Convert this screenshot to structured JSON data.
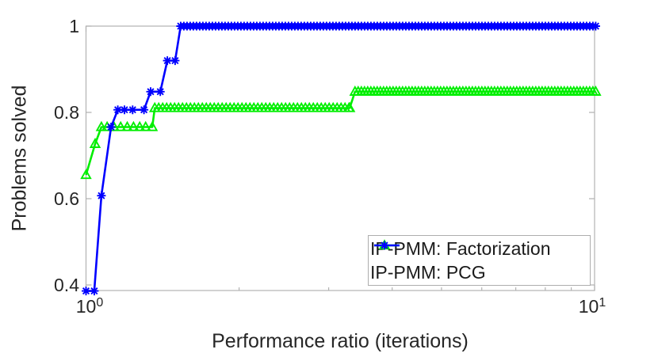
{
  "axes": {
    "xlabel": "Performance ratio (iterations)",
    "ylabel": "Problems solved",
    "axis_color": "#b2b2b2",
    "text_color": "#262626",
    "xticks": [
      {
        "base": "10",
        "exp": "0",
        "value": 1
      },
      {
        "base": "10",
        "exp": "1",
        "value": 10
      }
    ],
    "x_minor_ticks": [
      2,
      3,
      4,
      5,
      6,
      7,
      8,
      9
    ],
    "yticks": [
      {
        "label": "1",
        "value": 1.0
      },
      {
        "label": "0.8",
        "value": 0.8
      },
      {
        "label": "0.6",
        "value": 0.6
      },
      {
        "label": "0.4",
        "value": 0.4
      }
    ]
  },
  "legend": {
    "items": [
      {
        "label": "IP-PMM: Factorization",
        "color": "#00ee00",
        "marker": "triangle"
      },
      {
        "label": "IP-PMM: PCG",
        "color": "#0000ff",
        "marker": "asterisk"
      }
    ]
  },
  "chart_data": {
    "type": "line",
    "title": "",
    "xlabel": "Performance ratio (iterations)",
    "ylabel": "Problems solved",
    "x_scale": "log10",
    "xlim": [
      1,
      10
    ],
    "ylim": [
      0.387,
      1.0
    ],
    "grid": false,
    "legend_position": "south-east-inside",
    "series": [
      {
        "name": "IP-PMM: Factorization",
        "color": "#00ee00",
        "marker": "triangle",
        "points": [
          [
            1.0,
            0.655
          ],
          [
            1.042,
            0.727
          ],
          [
            1.072,
            0.766
          ],
          [
            1.1,
            0.766
          ],
          [
            1.135,
            0.766
          ],
          [
            1.17,
            0.766
          ],
          [
            1.205,
            0.766
          ],
          [
            1.24,
            0.766
          ],
          [
            1.275,
            0.766
          ],
          [
            1.31,
            0.766
          ],
          [
            1.35,
            0.766
          ],
          [
            1.365,
            0.81
          ],
          [
            3.3,
            0.81
          ],
          [
            3.38,
            0.848
          ],
          [
            10.05,
            0.848
          ]
        ],
        "dense_marker_runs": [
          {
            "x_from": 1.365,
            "x_to": 3.3,
            "y": 0.81,
            "spacing_px": 5
          },
          {
            "x_from": 3.38,
            "x_to": 10.05,
            "y": 0.848,
            "spacing_px": 4
          }
        ]
      },
      {
        "name": "IP-PMM: PCG",
        "color": "#0000ff",
        "marker": "asterisk",
        "points": [
          [
            1.0,
            0.386
          ],
          [
            1.038,
            0.386
          ],
          [
            1.072,
            0.607
          ],
          [
            1.12,
            0.766
          ],
          [
            1.155,
            0.806
          ],
          [
            1.19,
            0.806
          ],
          [
            1.235,
            0.806
          ],
          [
            1.3,
            0.806
          ],
          [
            1.34,
            0.848
          ],
          [
            1.4,
            0.848
          ],
          [
            1.445,
            0.92
          ],
          [
            1.497,
            0.92
          ],
          [
            1.535,
            1.0
          ],
          [
            10.05,
            1.0
          ]
        ],
        "dense_marker_runs": [
          {
            "x_from": 1.535,
            "x_to": 10.05,
            "y": 1.0,
            "spacing_px": 4
          }
        ]
      }
    ]
  }
}
